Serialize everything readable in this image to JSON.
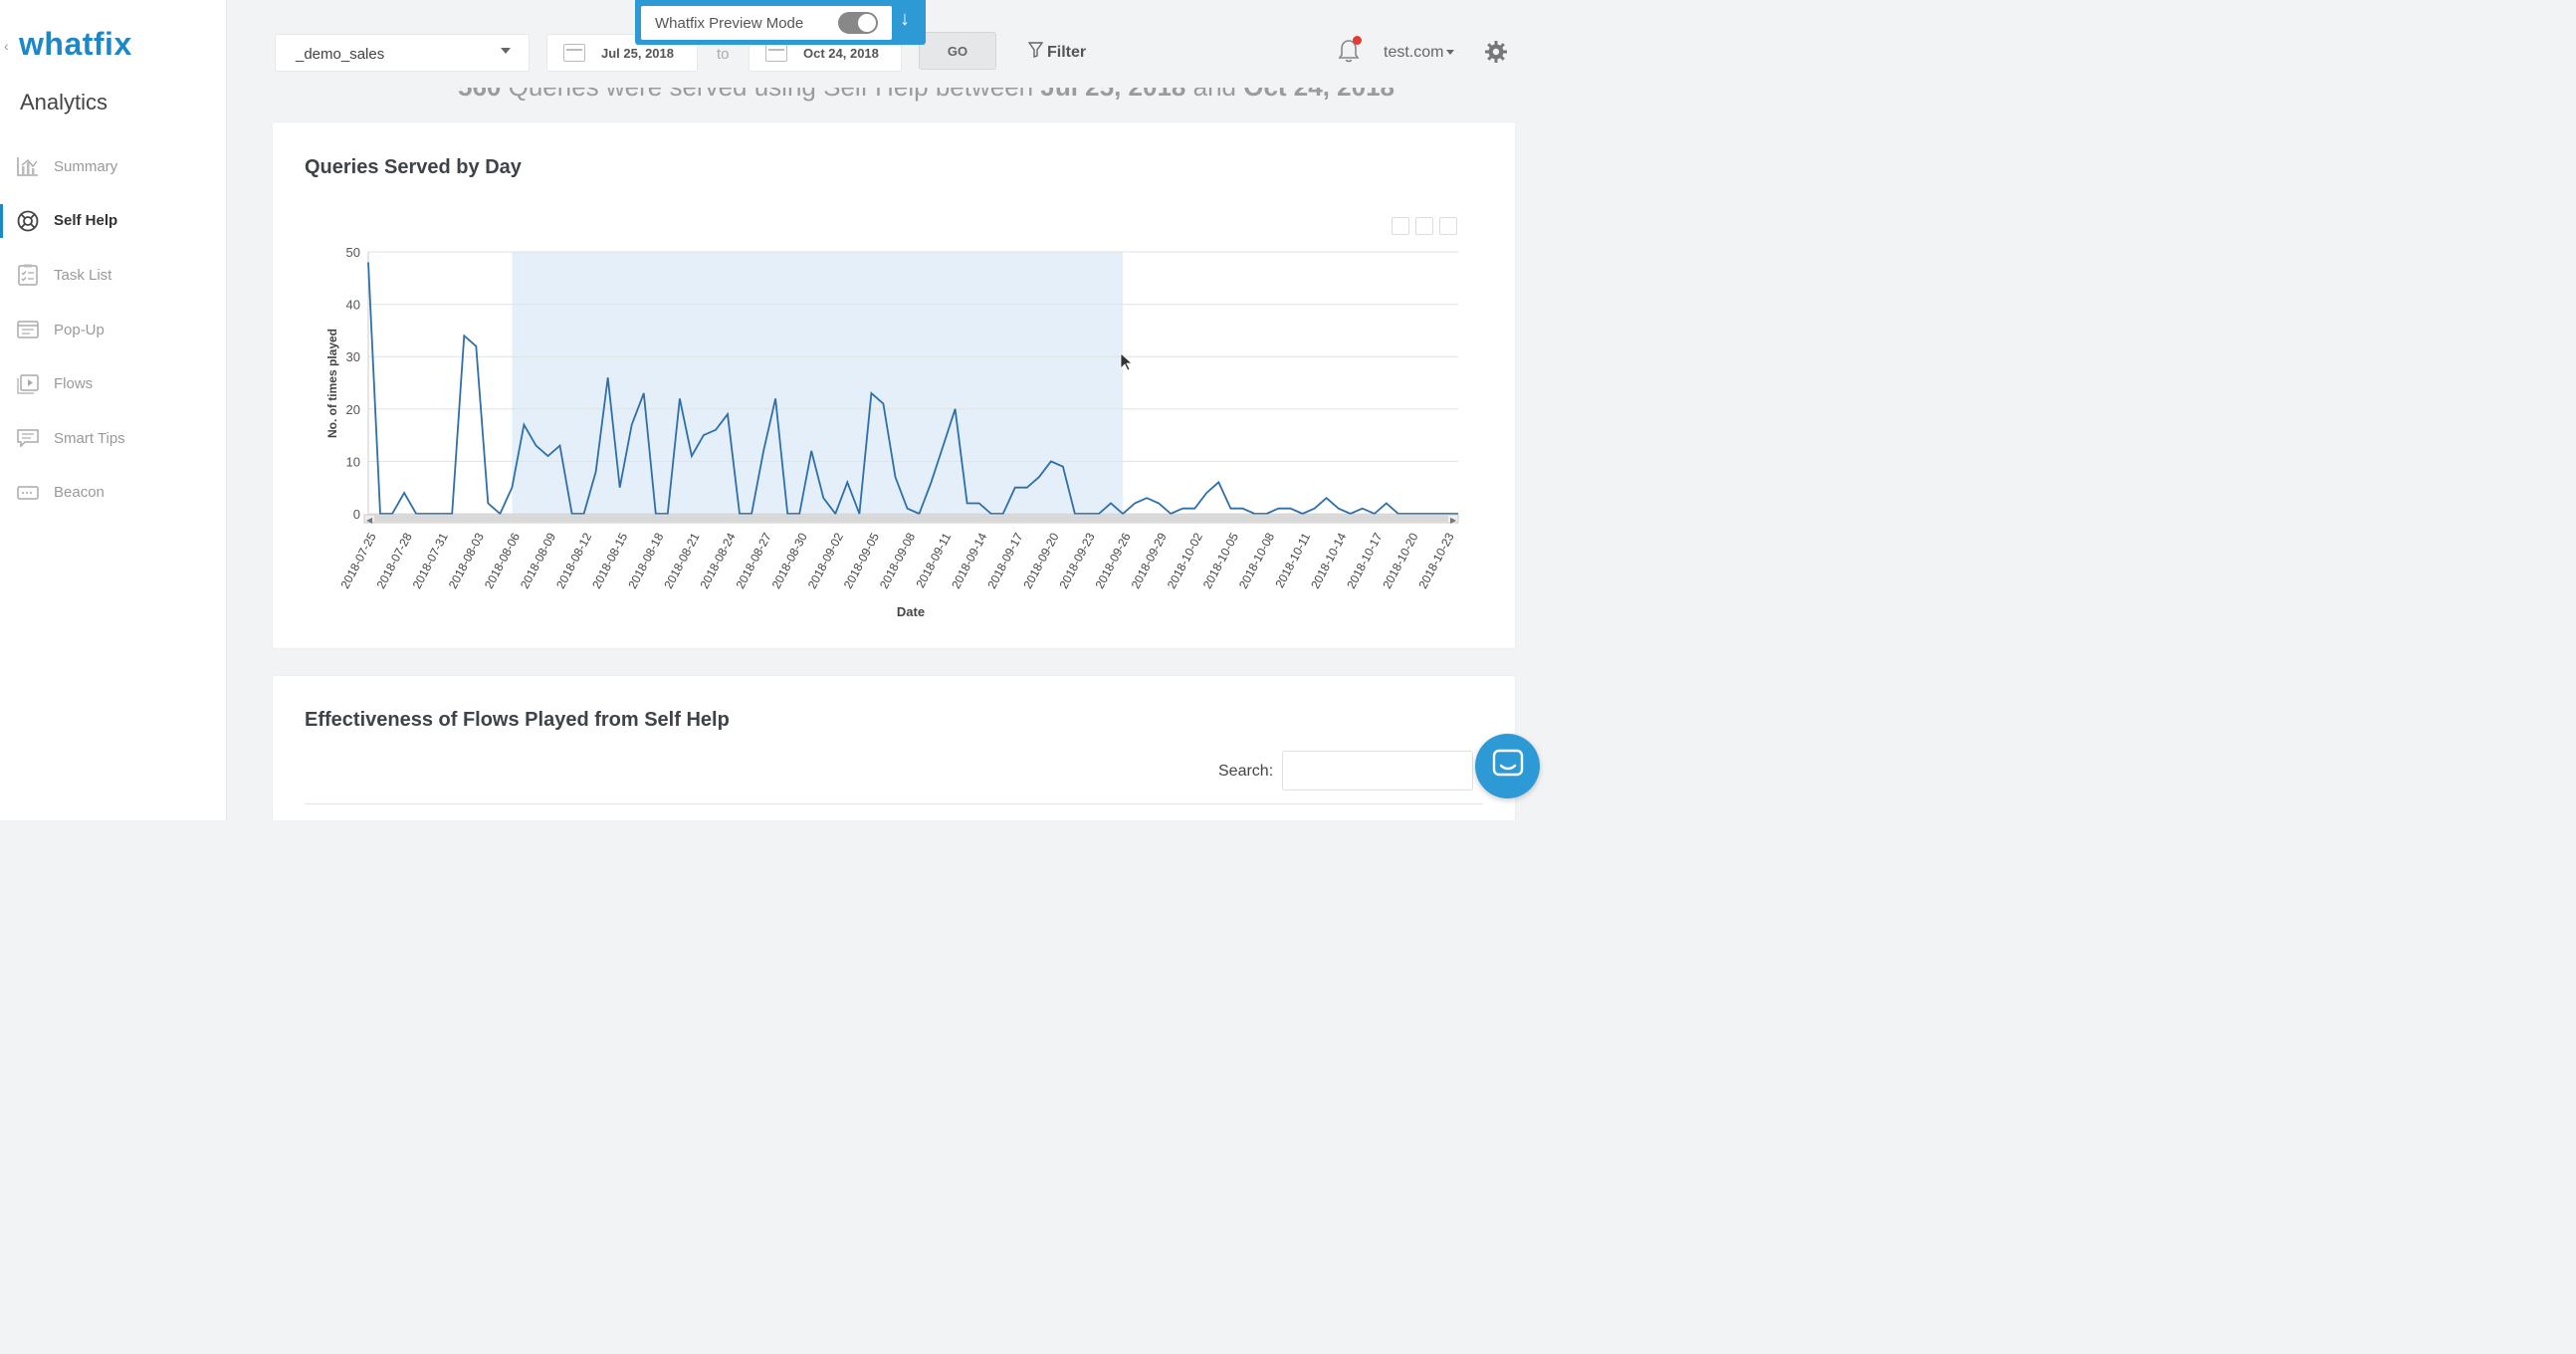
{
  "sidebar": {
    "logo": "whatfix",
    "section_title": "Analytics",
    "items": [
      {
        "label": "Summary",
        "icon": "chart-icon",
        "active": false
      },
      {
        "label": "Self Help",
        "icon": "lifebuoy-icon",
        "active": true
      },
      {
        "label": "Task List",
        "icon": "checklist-icon",
        "active": false
      },
      {
        "label": "Pop-Up",
        "icon": "popup-icon",
        "active": false
      },
      {
        "label": "Flows",
        "icon": "play-icon",
        "active": false
      },
      {
        "label": "Smart Tips",
        "icon": "tip-icon",
        "active": false
      },
      {
        "label": "Beacon",
        "icon": "beacon-icon",
        "active": false
      }
    ]
  },
  "topbar": {
    "app_select": "_demo_sales",
    "date_from": "Jul 25, 2018",
    "to_label": "to",
    "date_to": "Oct 24, 2018",
    "go_label": "GO",
    "filter_label": "Filter",
    "account": "test.com"
  },
  "preview": {
    "label": "Whatfix Preview Mode",
    "toggle_on": true
  },
  "summary_line": {
    "count": "560",
    "middle": "Queries were served using Self Help between",
    "from": "Jul 25, 2018",
    "and": "and",
    "to": "Oct 24, 2018"
  },
  "chart_card": {
    "title": "Queries Served by Day"
  },
  "chart_data": {
    "type": "line",
    "title": "Queries Served by Day",
    "xlabel": "Date",
    "ylabel": "No. of times played",
    "ylim": [
      0,
      50
    ],
    "yticks": [
      0,
      10,
      20,
      30,
      40,
      50
    ],
    "x_tick_labels": [
      "2018-07-25",
      "2018-07-28",
      "2018-07-31",
      "2018-08-03",
      "2018-08-06",
      "2018-08-09",
      "2018-08-12",
      "2018-08-15",
      "2018-08-18",
      "2018-08-21",
      "2018-08-24",
      "2018-08-27",
      "2018-08-30",
      "2018-09-02",
      "2018-09-05",
      "2018-09-08",
      "2018-09-11",
      "2018-09-14",
      "2018-09-17",
      "2018-09-20",
      "2018-09-23",
      "2018-09-26",
      "2018-09-29",
      "2018-10-02",
      "2018-10-05",
      "2018-10-08",
      "2018-10-11",
      "2018-10-14",
      "2018-10-17",
      "2018-10-20",
      "2018-10-23"
    ],
    "x_start": "2018-07-25",
    "x_end": "2018-10-24",
    "highlight_range": [
      "2018-08-06",
      "2018-09-26"
    ],
    "series": [
      {
        "color": "#2f6fa8",
        "points": [
          [
            "2018-07-25",
            48
          ],
          [
            "2018-07-26",
            0
          ],
          [
            "2018-07-27",
            0
          ],
          [
            "2018-07-28",
            4
          ],
          [
            "2018-07-29",
            0
          ],
          [
            "2018-07-30",
            0
          ],
          [
            "2018-07-31",
            0
          ],
          [
            "2018-08-01",
            0
          ],
          [
            "2018-08-02",
            34
          ],
          [
            "2018-08-03",
            32
          ],
          [
            "2018-08-04",
            2
          ],
          [
            "2018-08-05",
            0
          ],
          [
            "2018-08-06",
            5
          ],
          [
            "2018-08-07",
            17
          ],
          [
            "2018-08-08",
            13
          ],
          [
            "2018-08-09",
            11
          ],
          [
            "2018-08-10",
            13
          ],
          [
            "2018-08-11",
            0
          ],
          [
            "2018-08-12",
            0
          ],
          [
            "2018-08-13",
            8
          ],
          [
            "2018-08-14",
            26
          ],
          [
            "2018-08-15",
            5
          ],
          [
            "2018-08-16",
            17
          ],
          [
            "2018-08-17",
            23
          ],
          [
            "2018-08-18",
            0
          ],
          [
            "2018-08-19",
            0
          ],
          [
            "2018-08-20",
            22
          ],
          [
            "2018-08-21",
            11
          ],
          [
            "2018-08-22",
            15
          ],
          [
            "2018-08-23",
            16
          ],
          [
            "2018-08-24",
            19
          ],
          [
            "2018-08-25",
            0
          ],
          [
            "2018-08-26",
            0
          ],
          [
            "2018-08-27",
            12
          ],
          [
            "2018-08-28",
            22
          ],
          [
            "2018-08-29",
            0
          ],
          [
            "2018-08-30",
            0
          ],
          [
            "2018-08-31",
            12
          ],
          [
            "2018-09-01",
            3
          ],
          [
            "2018-09-02",
            0
          ],
          [
            "2018-09-03",
            6
          ],
          [
            "2018-09-04",
            0
          ],
          [
            "2018-09-05",
            23
          ],
          [
            "2018-09-06",
            21
          ],
          [
            "2018-09-07",
            7
          ],
          [
            "2018-09-08",
            1
          ],
          [
            "2018-09-09",
            0
          ],
          [
            "2018-09-10",
            6
          ],
          [
            "2018-09-11",
            13
          ],
          [
            "2018-09-12",
            20
          ],
          [
            "2018-09-13",
            2
          ],
          [
            "2018-09-14",
            2
          ],
          [
            "2018-09-15",
            0
          ],
          [
            "2018-09-16",
            0
          ],
          [
            "2018-09-17",
            5
          ],
          [
            "2018-09-18",
            5
          ],
          [
            "2018-09-19",
            7
          ],
          [
            "2018-09-20",
            10
          ],
          [
            "2018-09-21",
            9
          ],
          [
            "2018-09-22",
            0
          ],
          [
            "2018-09-23",
            0
          ],
          [
            "2018-09-24",
            0
          ],
          [
            "2018-09-25",
            2
          ],
          [
            "2018-09-26",
            0
          ],
          [
            "2018-09-27",
            2
          ],
          [
            "2018-09-28",
            3
          ],
          [
            "2018-09-29",
            2
          ],
          [
            "2018-09-30",
            0
          ],
          [
            "2018-10-01",
            1
          ],
          [
            "2018-10-02",
            1
          ],
          [
            "2018-10-03",
            4
          ],
          [
            "2018-10-04",
            6
          ],
          [
            "2018-10-05",
            1
          ],
          [
            "2018-10-06",
            1
          ],
          [
            "2018-10-07",
            0
          ],
          [
            "2018-10-08",
            0
          ],
          [
            "2018-10-09",
            1
          ],
          [
            "2018-10-10",
            1
          ],
          [
            "2018-10-11",
            0
          ],
          [
            "2018-10-12",
            1
          ],
          [
            "2018-10-13",
            3
          ],
          [
            "2018-10-14",
            1
          ],
          [
            "2018-10-15",
            0
          ],
          [
            "2018-10-16",
            1
          ],
          [
            "2018-10-17",
            0
          ],
          [
            "2018-10-18",
            2
          ],
          [
            "2018-10-19",
            0
          ],
          [
            "2018-10-20",
            0
          ],
          [
            "2018-10-21",
            0
          ],
          [
            "2018-10-22",
            0
          ],
          [
            "2018-10-23",
            0
          ],
          [
            "2018-10-24",
            0
          ]
        ]
      }
    ],
    "grid": true,
    "legend": "none"
  },
  "table_card": {
    "title": "Effectiveness of Flows Played from Self Help",
    "search_label": "Search:"
  },
  "colors": {
    "brand": "#1e88c7",
    "banner": "#2d9ad6",
    "line": "#2f6fa8",
    "highlight": "#e4effa"
  }
}
